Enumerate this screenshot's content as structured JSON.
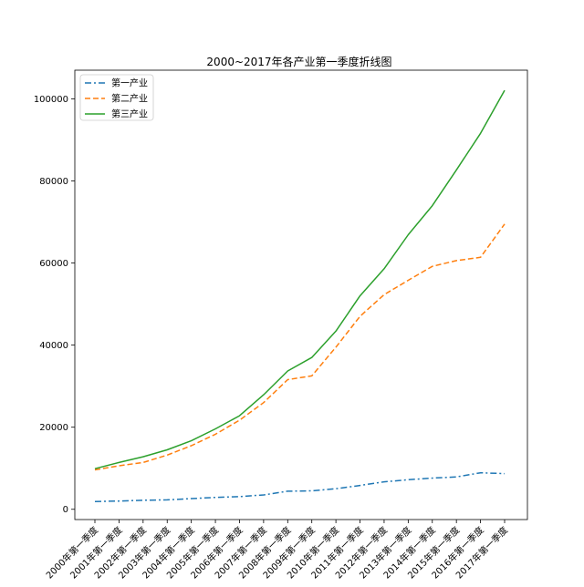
{
  "chart_data": {
    "type": "line",
    "title": "2000~2017年各产业第一季度折线图",
    "xlabel": "",
    "ylabel": "",
    "categories": [
      "2000年第一季度",
      "2001年第一季度",
      "2002年第一季度",
      "2003年第一季度",
      "2004年第一季度",
      "2005年第一季度",
      "2006年第一季度",
      "2007年第一季度",
      "2008年第一季度",
      "2009年第一季度",
      "2010年第一季度",
      "2011年第一季度",
      "2012年第一季度",
      "2013年第一季度",
      "2014年第一季度",
      "2015年第一季度",
      "2016年第一季度",
      "2017年第一季度"
    ],
    "ylim": [
      -2500,
      107000
    ],
    "yticks": [
      0,
      20000,
      40000,
      60000,
      80000,
      100000
    ],
    "grid": false,
    "legend_position": "top-left",
    "series": [
      {
        "name": "第一产业",
        "color": "#1f77b4",
        "dash": "dashdot",
        "values": [
          1900,
          2000,
          2200,
          2300,
          2600,
          2900,
          3100,
          3500,
          4400,
          4500,
          5000,
          5800,
          6700,
          7200,
          7600,
          7900,
          8900,
          8700
        ]
      },
      {
        "name": "第二产业",
        "color": "#ff7f0e",
        "dash": "dashed",
        "values": [
          9600,
          10600,
          11400,
          13200,
          15500,
          18300,
          21700,
          26000,
          31600,
          32500,
          39500,
          47000,
          52300,
          55800,
          59200,
          60600,
          61400,
          69500
        ]
      },
      {
        "name": "第三产业",
        "color": "#2ca02c",
        "dash": "solid",
        "values": [
          9900,
          11400,
          12800,
          14500,
          16700,
          19600,
          22800,
          27900,
          33700,
          37000,
          43400,
          52000,
          58600,
          66900,
          74000,
          82700,
          91600,
          102100
        ]
      }
    ]
  }
}
